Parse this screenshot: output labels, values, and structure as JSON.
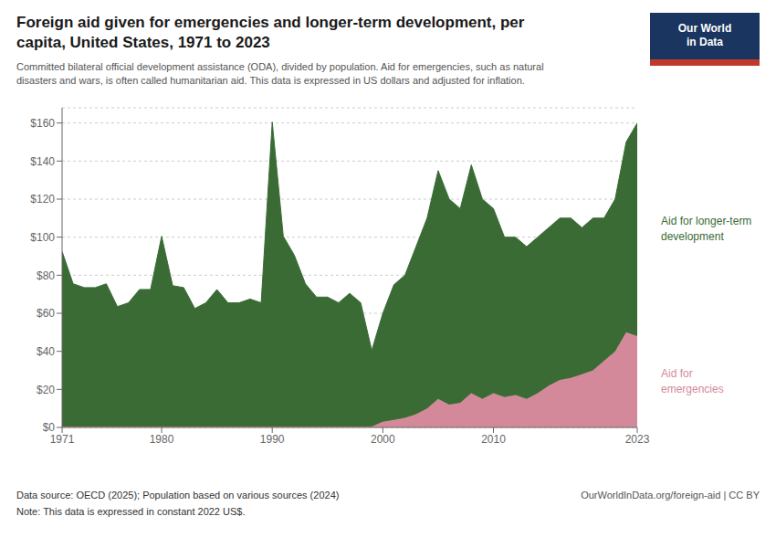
{
  "chart_data": {
    "type": "area",
    "stacked": true,
    "grid": true,
    "title": "Foreign aid given for emergencies and longer-term development, per\ncapita, United States, 1971 to 2023",
    "subtitle": "Committed bilateral official development assistance (ODA), divided by population. Aid for emergencies, such as natural\ndisasters and wars, is often called humanitarian aid. This data is expressed in US dollars and adjusted for inflation.",
    "annotations": [
      "Data source: OECD (2025); Population based on various sources (2024)",
      "Note: This data is expressed in constant 2022 US$.",
      "OurWorldInData.org/foreign-aid | CC BY",
      "Our World\nin Data"
    ],
    "x": [
      1971,
      1972,
      1973,
      1974,
      1975,
      1976,
      1977,
      1978,
      1979,
      1980,
      1981,
      1982,
      1983,
      1984,
      1985,
      1986,
      1987,
      1988,
      1989,
      1990,
      1991,
      1992,
      1993,
      1994,
      1995,
      1996,
      1997,
      1998,
      1999,
      2000,
      2001,
      2002,
      2003,
      2004,
      2005,
      2006,
      2007,
      2008,
      2009,
      2010,
      2011,
      2012,
      2013,
      2014,
      2015,
      2016,
      2017,
      2018,
      2019,
      2020,
      2021,
      2022,
      2023
    ],
    "xlim": [
      1971,
      2023
    ],
    "xticks": [
      1971,
      1980,
      1990,
      2000,
      2010,
      2023
    ],
    "ylim": [
      0,
      168
    ],
    "yticks": [
      {
        "value": 0,
        "label": "$0"
      },
      {
        "value": 20,
        "label": "$20"
      },
      {
        "value": 40,
        "label": "$40"
      },
      {
        "value": 60,
        "label": "$60"
      },
      {
        "value": 80,
        "label": "$80"
      },
      {
        "value": 100,
        "label": "$100"
      },
      {
        "value": 120,
        "label": "$120"
      },
      {
        "value": 140,
        "label": "$140"
      },
      {
        "value": 160,
        "label": "$160"
      }
    ],
    "series": [
      {
        "name": "Aid for\nemergencies",
        "color": "#d4899a",
        "values": [
          0.5,
          0.5,
          0.5,
          0.5,
          0.5,
          0.5,
          0.5,
          0.5,
          0.5,
          0.5,
          0.5,
          0.5,
          0.5,
          0.5,
          0.5,
          0.5,
          0.5,
          0.5,
          0.5,
          0.5,
          0.5,
          0.5,
          0.5,
          0.5,
          0.5,
          0.5,
          0.5,
          0.5,
          0.5,
          3,
          4,
          5,
          7,
          10,
          15,
          12,
          13,
          18,
          15,
          18,
          16,
          17,
          15,
          18,
          22,
          25,
          26,
          28,
          30,
          35,
          40,
          50,
          48
        ]
      },
      {
        "name": "Aid for longer-term\ndevelopment",
        "color": "#3a6b35",
        "values": [
          92,
          75,
          73,
          73,
          75,
          63,
          65,
          72,
          72,
          100,
          74,
          73,
          62,
          65,
          72,
          65,
          65,
          67,
          65,
          160,
          100,
          90,
          75,
          68,
          68,
          65,
          70,
          65,
          40,
          57,
          71,
          75,
          88,
          100,
          120,
          108,
          102,
          120,
          105,
          97,
          84,
          83,
          80,
          82,
          83,
          85,
          84,
          77,
          80,
          75,
          80,
          100,
          112
        ]
      }
    ]
  }
}
